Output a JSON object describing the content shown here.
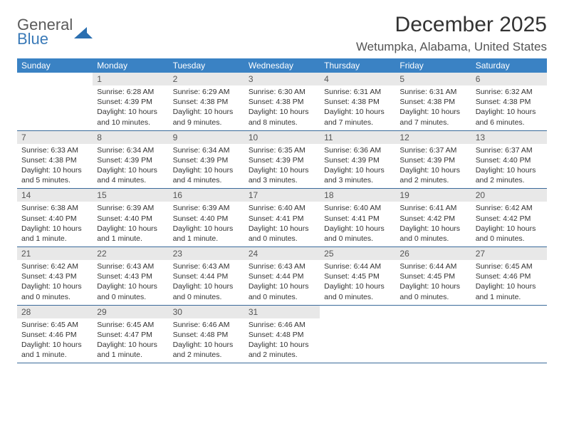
{
  "logo": {
    "line1": "General",
    "line2": "Blue",
    "icon_color": "#2b6fb0"
  },
  "header": {
    "month_title": "December 2025",
    "location": "Wetumpka, Alabama, United States"
  },
  "colors": {
    "header_bar": "#3a82c4",
    "daynum_bg": "#e8e8e8",
    "week_border": "#3a6a9a",
    "text": "#333333"
  },
  "days_of_week": [
    "Sunday",
    "Monday",
    "Tuesday",
    "Wednesday",
    "Thursday",
    "Friday",
    "Saturday"
  ],
  "weeks": [
    [
      {
        "blank": true
      },
      {
        "n": "1",
        "sunrise": "Sunrise: 6:28 AM",
        "sunset": "Sunset: 4:39 PM",
        "daylight": "Daylight: 10 hours and 10 minutes."
      },
      {
        "n": "2",
        "sunrise": "Sunrise: 6:29 AM",
        "sunset": "Sunset: 4:38 PM",
        "daylight": "Daylight: 10 hours and 9 minutes."
      },
      {
        "n": "3",
        "sunrise": "Sunrise: 6:30 AM",
        "sunset": "Sunset: 4:38 PM",
        "daylight": "Daylight: 10 hours and 8 minutes."
      },
      {
        "n": "4",
        "sunrise": "Sunrise: 6:31 AM",
        "sunset": "Sunset: 4:38 PM",
        "daylight": "Daylight: 10 hours and 7 minutes."
      },
      {
        "n": "5",
        "sunrise": "Sunrise: 6:31 AM",
        "sunset": "Sunset: 4:38 PM",
        "daylight": "Daylight: 10 hours and 7 minutes."
      },
      {
        "n": "6",
        "sunrise": "Sunrise: 6:32 AM",
        "sunset": "Sunset: 4:38 PM",
        "daylight": "Daylight: 10 hours and 6 minutes."
      }
    ],
    [
      {
        "n": "7",
        "sunrise": "Sunrise: 6:33 AM",
        "sunset": "Sunset: 4:38 PM",
        "daylight": "Daylight: 10 hours and 5 minutes."
      },
      {
        "n": "8",
        "sunrise": "Sunrise: 6:34 AM",
        "sunset": "Sunset: 4:39 PM",
        "daylight": "Daylight: 10 hours and 4 minutes."
      },
      {
        "n": "9",
        "sunrise": "Sunrise: 6:34 AM",
        "sunset": "Sunset: 4:39 PM",
        "daylight": "Daylight: 10 hours and 4 minutes."
      },
      {
        "n": "10",
        "sunrise": "Sunrise: 6:35 AM",
        "sunset": "Sunset: 4:39 PM",
        "daylight": "Daylight: 10 hours and 3 minutes."
      },
      {
        "n": "11",
        "sunrise": "Sunrise: 6:36 AM",
        "sunset": "Sunset: 4:39 PM",
        "daylight": "Daylight: 10 hours and 3 minutes."
      },
      {
        "n": "12",
        "sunrise": "Sunrise: 6:37 AM",
        "sunset": "Sunset: 4:39 PM",
        "daylight": "Daylight: 10 hours and 2 minutes."
      },
      {
        "n": "13",
        "sunrise": "Sunrise: 6:37 AM",
        "sunset": "Sunset: 4:40 PM",
        "daylight": "Daylight: 10 hours and 2 minutes."
      }
    ],
    [
      {
        "n": "14",
        "sunrise": "Sunrise: 6:38 AM",
        "sunset": "Sunset: 4:40 PM",
        "daylight": "Daylight: 10 hours and 1 minute."
      },
      {
        "n": "15",
        "sunrise": "Sunrise: 6:39 AM",
        "sunset": "Sunset: 4:40 PM",
        "daylight": "Daylight: 10 hours and 1 minute."
      },
      {
        "n": "16",
        "sunrise": "Sunrise: 6:39 AM",
        "sunset": "Sunset: 4:40 PM",
        "daylight": "Daylight: 10 hours and 1 minute."
      },
      {
        "n": "17",
        "sunrise": "Sunrise: 6:40 AM",
        "sunset": "Sunset: 4:41 PM",
        "daylight": "Daylight: 10 hours and 0 minutes."
      },
      {
        "n": "18",
        "sunrise": "Sunrise: 6:40 AM",
        "sunset": "Sunset: 4:41 PM",
        "daylight": "Daylight: 10 hours and 0 minutes."
      },
      {
        "n": "19",
        "sunrise": "Sunrise: 6:41 AM",
        "sunset": "Sunset: 4:42 PM",
        "daylight": "Daylight: 10 hours and 0 minutes."
      },
      {
        "n": "20",
        "sunrise": "Sunrise: 6:42 AM",
        "sunset": "Sunset: 4:42 PM",
        "daylight": "Daylight: 10 hours and 0 minutes."
      }
    ],
    [
      {
        "n": "21",
        "sunrise": "Sunrise: 6:42 AM",
        "sunset": "Sunset: 4:43 PM",
        "daylight": "Daylight: 10 hours and 0 minutes."
      },
      {
        "n": "22",
        "sunrise": "Sunrise: 6:43 AM",
        "sunset": "Sunset: 4:43 PM",
        "daylight": "Daylight: 10 hours and 0 minutes."
      },
      {
        "n": "23",
        "sunrise": "Sunrise: 6:43 AM",
        "sunset": "Sunset: 4:44 PM",
        "daylight": "Daylight: 10 hours and 0 minutes."
      },
      {
        "n": "24",
        "sunrise": "Sunrise: 6:43 AM",
        "sunset": "Sunset: 4:44 PM",
        "daylight": "Daylight: 10 hours and 0 minutes."
      },
      {
        "n": "25",
        "sunrise": "Sunrise: 6:44 AM",
        "sunset": "Sunset: 4:45 PM",
        "daylight": "Daylight: 10 hours and 0 minutes."
      },
      {
        "n": "26",
        "sunrise": "Sunrise: 6:44 AM",
        "sunset": "Sunset: 4:45 PM",
        "daylight": "Daylight: 10 hours and 0 minutes."
      },
      {
        "n": "27",
        "sunrise": "Sunrise: 6:45 AM",
        "sunset": "Sunset: 4:46 PM",
        "daylight": "Daylight: 10 hours and 1 minute."
      }
    ],
    [
      {
        "n": "28",
        "sunrise": "Sunrise: 6:45 AM",
        "sunset": "Sunset: 4:46 PM",
        "daylight": "Daylight: 10 hours and 1 minute."
      },
      {
        "n": "29",
        "sunrise": "Sunrise: 6:45 AM",
        "sunset": "Sunset: 4:47 PM",
        "daylight": "Daylight: 10 hours and 1 minute."
      },
      {
        "n": "30",
        "sunrise": "Sunrise: 6:46 AM",
        "sunset": "Sunset: 4:48 PM",
        "daylight": "Daylight: 10 hours and 2 minutes."
      },
      {
        "n": "31",
        "sunrise": "Sunrise: 6:46 AM",
        "sunset": "Sunset: 4:48 PM",
        "daylight": "Daylight: 10 hours and 2 minutes."
      },
      {
        "blank": true
      },
      {
        "blank": true
      },
      {
        "blank": true
      }
    ]
  ]
}
